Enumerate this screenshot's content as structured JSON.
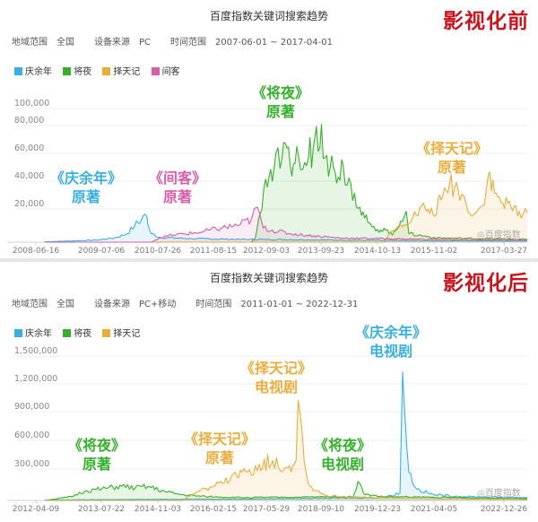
{
  "panels": [
    {
      "title": "百度指数关键词搜索趋势",
      "badge": "影视化前",
      "meta": {
        "region_label": "地域范围",
        "region": "全国",
        "source_label": "设备来源",
        "source": "PC",
        "range_label": "时间范围",
        "range": "2007-06-01 ~ 2017-04-01"
      },
      "legend": [
        {
          "name": "庆余年",
          "color": "#3ab0e0"
        },
        {
          "name": "将夜",
          "color": "#36b02c"
        },
        {
          "name": "择天记",
          "color": "#e8ad3c"
        },
        {
          "name": "间客",
          "color": "#d65fa8"
        }
      ],
      "watermark": "◎百度指数",
      "annotations": [
        {
          "lines": [
            "《将夜》",
            "原著"
          ],
          "color": "#36b02c"
        },
        {
          "lines": [
            "《庆余年》",
            "原著"
          ],
          "color": "#3ab0e0"
        },
        {
          "lines": [
            "《间客》",
            "原著"
          ],
          "color": "#d65fa8"
        },
        {
          "lines": [
            "《择天记》",
            "原著"
          ],
          "color": "#e8ad3c"
        }
      ]
    },
    {
      "title": "百度指数关键词搜索趋势",
      "badge": "影视化后",
      "meta": {
        "region_label": "地域范围",
        "region": "全国",
        "source_label": "设备来源",
        "source": "PC+移动",
        "range_label": "时间范围",
        "range": "2011-01-01 ~ 2022-12-31"
      },
      "legend": [
        {
          "name": "庆余年",
          "color": "#3ab0e0"
        },
        {
          "name": "将夜",
          "color": "#36b02c"
        },
        {
          "name": "择天记",
          "color": "#e8ad3c"
        }
      ],
      "watermark": "◎百度指数",
      "annotations": [
        {
          "lines": [
            "《择天记》",
            "电视剧"
          ],
          "color": "#e8ad3c"
        },
        {
          "lines": [
            "《庆余年》",
            "电视剧"
          ],
          "color": "#3ab0e0"
        },
        {
          "lines": [
            "《将夜》",
            "原著"
          ],
          "color": "#36b02c"
        },
        {
          "lines": [
            "《择天记》",
            "原著"
          ],
          "color": "#e8ad3c"
        },
        {
          "lines": [
            "《将夜》",
            "电视剧"
          ],
          "color": "#36b02c"
        }
      ]
    }
  ],
  "chart_data": [
    {
      "type": "line",
      "title": "百度指数关键词搜索趋势",
      "x_range": [
        "2007-06-01",
        "2017-04-01"
      ],
      "y_ticks": [
        "100,000",
        "80,000",
        "60,000",
        "40,000",
        "20,000"
      ],
      "ylim": [
        0,
        105000
      ],
      "x_ticks": [
        "2008-06-16",
        "2009-07-06",
        "2010-07-26",
        "2011-08-15",
        "2012-09-03",
        "2013-09-23",
        "2014-10-13",
        "2015-11-02",
        "2017-03-27"
      ],
      "grid": true,
      "legend_position": "top-left",
      "series": [
        {
          "name": "庆余年",
          "color": "#3ab0e0",
          "points": [
            [
              "2007-06-01",
              300
            ],
            [
              "2007-12-01",
              800
            ],
            [
              "2008-06-16",
              1500
            ],
            [
              "2008-11-01",
              3000
            ],
            [
              "2009-02-01",
              6000
            ],
            [
              "2009-04-01",
              12000
            ],
            [
              "2009-05-20",
              16000
            ],
            [
              "2009-06-15",
              20000
            ],
            [
              "2009-07-01",
              18000
            ],
            [
              "2009-07-06",
              13000
            ],
            [
              "2009-08-01",
              6000
            ],
            [
              "2009-10-01",
              3500
            ],
            [
              "2010-06-01",
              2500
            ],
            [
              "2011-06-01",
              2000
            ],
            [
              "2012-06-01",
              1800
            ],
            [
              "2013-06-01",
              1500
            ],
            [
              "2014-06-01",
              1200
            ],
            [
              "2015-06-01",
              1000
            ],
            [
              "2016-06-01",
              1000
            ],
            [
              "2017-04-01",
              900
            ]
          ]
        },
        {
          "name": "将夜",
          "color": "#36b02c",
          "points": [
            [
              "2007-06-01",
              0
            ],
            [
              "2011-08-15",
              0
            ],
            [
              "2011-09-15",
              3000
            ],
            [
              "2011-10-20",
              20000
            ],
            [
              "2011-12-01",
              45000
            ],
            [
              "2012-02-01",
              52000
            ],
            [
              "2012-04-01",
              60000
            ],
            [
              "2012-06-01",
              55000
            ],
            [
              "2012-08-01",
              62000
            ],
            [
              "2012-09-03",
              52000
            ],
            [
              "2012-10-15",
              60000
            ],
            [
              "2012-12-01",
              75000
            ],
            [
              "2013-01-20",
              84000
            ],
            [
              "2013-03-01",
              62000
            ],
            [
              "2013-05-01",
              50000
            ],
            [
              "2013-07-01",
              55000
            ],
            [
              "2013-09-23",
              35000
            ],
            [
              "2013-11-01",
              25000
            ],
            [
              "2014-01-01",
              14000
            ],
            [
              "2014-03-01",
              8000
            ],
            [
              "2014-05-01",
              10000
            ],
            [
              "2014-07-01",
              5000
            ],
            [
              "2014-09-01",
              15000
            ],
            [
              "2014-10-13",
              22000
            ],
            [
              "2014-11-01",
              6000
            ],
            [
              "2015-06-01",
              3000
            ],
            [
              "2017-04-01",
              2000
            ]
          ]
        },
        {
          "name": "择天记",
          "color": "#e8ad3c",
          "points": [
            [
              "2007-06-01",
              0
            ],
            [
              "2014-05-01",
              0
            ],
            [
              "2014-06-01",
              5000
            ],
            [
              "2014-09-01",
              12000
            ],
            [
              "2014-12-01",
              18000
            ],
            [
              "2015-03-01",
              25000
            ],
            [
              "2015-05-01",
              20000
            ],
            [
              "2015-07-01",
              30000
            ],
            [
              "2015-09-01",
              42000
            ],
            [
              "2015-11-02",
              38000
            ],
            [
              "2016-01-01",
              28000
            ],
            [
              "2016-03-01",
              20000
            ],
            [
              "2016-05-01",
              26000
            ],
            [
              "2016-06-15",
              48000
            ],
            [
              "2016-08-01",
              35000
            ],
            [
              "2016-10-01",
              28000
            ],
            [
              "2016-12-01",
              25000
            ],
            [
              "2017-02-01",
              22000
            ],
            [
              "2017-04-01",
              21000
            ]
          ]
        },
        {
          "name": "间客",
          "color": "#d65fa8",
          "points": [
            [
              "2007-06-01",
              0
            ],
            [
              "2009-08-01",
              0
            ],
            [
              "2009-10-01",
              3000
            ],
            [
              "2010-01-01",
              5000
            ],
            [
              "2010-07-26",
              7000
            ],
            [
              "2011-01-01",
              10000
            ],
            [
              "2011-05-01",
              12000
            ],
            [
              "2011-08-15",
              16000
            ],
            [
              "2011-10-01",
              25000
            ],
            [
              "2011-11-15",
              10000
            ],
            [
              "2012-06-01",
              6000
            ],
            [
              "2013-06-01",
              3000
            ],
            [
              "2015-06-01",
              2000
            ],
            [
              "2017-04-01",
              1500
            ]
          ]
        }
      ]
    },
    {
      "type": "line",
      "title": "百度指数关键词搜索趋势",
      "x_range": [
        "2011-01-01",
        "2022-12-31"
      ],
      "y_ticks": [
        "1,500,000",
        "1,200,000",
        "900,000",
        "600,000",
        "300,000"
      ],
      "ylim": [
        0,
        1600000
      ],
      "x_ticks": [
        "2012-04-09",
        "2013-07-22",
        "2014-11-03",
        "2016-02-15",
        "2017-05-29",
        "2018-09-10",
        "2019-12-23",
        "2021-04-05",
        "2022-12-26"
      ],
      "grid": true,
      "legend_position": "top-left",
      "series": [
        {
          "name": "庆余年",
          "color": "#3ab0e0",
          "points": [
            [
              "2011-01-01",
              5000
            ],
            [
              "2013-01-01",
              10000
            ],
            [
              "2016-01-01",
              15000
            ],
            [
              "2019-06-01",
              30000
            ],
            [
              "2019-11-01",
              80000
            ],
            [
              "2019-11-25",
              1350000
            ],
            [
              "2019-12-15",
              900000
            ],
            [
              "2020-01-20",
              300000
            ],
            [
              "2020-04-01",
              120000
            ],
            [
              "2020-09-01",
              60000
            ],
            [
              "2021-06-01",
              40000
            ],
            [
              "2022-12-31",
              30000
            ]
          ]
        },
        {
          "name": "将夜",
          "color": "#36b02c",
          "points": [
            [
              "2011-01-01",
              0
            ],
            [
              "2011-09-01",
              40000
            ],
            [
              "2012-01-01",
              100000
            ],
            [
              "2012-06-01",
              120000
            ],
            [
              "2012-12-01",
              150000
            ],
            [
              "2013-04-01",
              130000
            ],
            [
              "2013-07-22",
              145000
            ],
            [
              "2014-01-01",
              90000
            ],
            [
              "2014-06-01",
              60000
            ],
            [
              "2015-01-01",
              40000
            ],
            [
              "2016-01-01",
              30000
            ],
            [
              "2018-09-01",
              40000
            ],
            [
              "2018-10-15",
              200000
            ],
            [
              "2018-11-15",
              150000
            ],
            [
              "2018-12-20",
              60000
            ],
            [
              "2019-06-01",
              40000
            ],
            [
              "2022-12-31",
              20000
            ]
          ]
        },
        {
          "name": "择天记",
          "color": "#e8ad3c",
          "points": [
            [
              "2011-01-01",
              0
            ],
            [
              "2014-06-01",
              0
            ],
            [
              "2014-11-03",
              100000
            ],
            [
              "2015-06-01",
              180000
            ],
            [
              "2016-01-01",
              300000
            ],
            [
              "2016-05-01",
              380000
            ],
            [
              "2016-09-01",
              420000
            ],
            [
              "2017-01-01",
              350000
            ],
            [
              "2017-04-01",
              420000
            ],
            [
              "2017-04-20",
              1050000
            ],
            [
              "2017-05-10",
              900000
            ],
            [
              "2017-06-15",
              400000
            ],
            [
              "2017-08-01",
              150000
            ],
            [
              "2018-01-01",
              50000
            ],
            [
              "2019-01-01",
              30000
            ],
            [
              "2022-12-31",
              10000
            ]
          ]
        }
      ]
    }
  ]
}
